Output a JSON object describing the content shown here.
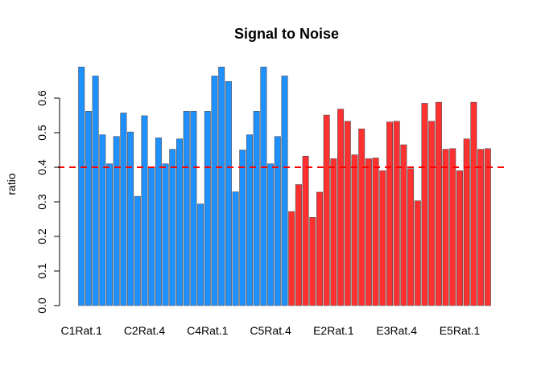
{
  "chart_data": {
    "type": "bar",
    "title": "Signal to Noise",
    "xlabel": "",
    "ylabel": "ratio",
    "ylim": [
      0,
      0.72
    ],
    "yticks": [
      0.0,
      0.1,
      0.2,
      0.3,
      0.4,
      0.5,
      0.6
    ],
    "ytick_labels": [
      "0.0",
      "0.1",
      "0.2",
      "0.3",
      "0.4",
      "0.5",
      "0.6"
    ],
    "xtick_labels": [
      {
        "index": 0,
        "label": "C1Rat.1"
      },
      {
        "index": 9,
        "label": "C2Rat.4"
      },
      {
        "index": 18,
        "label": "C4Rat.1"
      },
      {
        "index": 27,
        "label": "C5Rat.4"
      },
      {
        "index": 36,
        "label": "E2Rat.1"
      },
      {
        "index": 45,
        "label": "E3Rat.4"
      },
      {
        "index": 54,
        "label": "E5Rat.1"
      }
    ],
    "reference_line": {
      "value": 0.4,
      "color": "#ff0000",
      "style": "dashed"
    },
    "colors": {
      "group_C": "#1e90ff",
      "group_E": "#ff3030",
      "bar_border": "#4d4d4d"
    },
    "series": [
      {
        "color": "#1e90ff",
        "start_index": 0,
        "values": [
          0.69,
          0.562,
          0.664,
          0.494,
          0.41,
          0.489,
          0.557,
          0.502,
          0.316,
          0.549,
          0.4,
          0.485,
          0.41,
          0.452,
          0.482,
          0.562,
          0.562,
          0.294,
          0.562,
          0.664,
          0.69,
          0.648,
          0.329,
          0.45,
          0.494,
          0.562,
          0.69,
          0.41,
          0.489,
          0.664
        ]
      },
      {
        "color": "#ff3030",
        "start_index": 30,
        "values": [
          0.272,
          0.35,
          0.432,
          0.255,
          0.328,
          0.551,
          0.425,
          0.568,
          0.533,
          0.436,
          0.511,
          0.425,
          0.427,
          0.39,
          0.531,
          0.533,
          0.465,
          0.396,
          0.303,
          0.585,
          0.533,
          0.588,
          0.452,
          0.454,
          0.39,
          0.482,
          0.588,
          0.452,
          0.454
        ]
      }
    ]
  }
}
